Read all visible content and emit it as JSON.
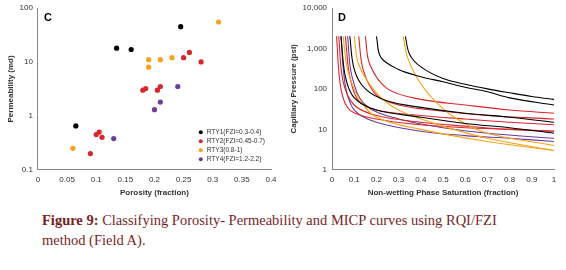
{
  "chart_data": [
    {
      "type": "scatter",
      "annotation": "C",
      "x_label": "Porosity (fraction)",
      "y_label": "Permeability (md)",
      "log": "y",
      "grid": false,
      "legend": "lower right",
      "marker": "circle",
      "xlim": [
        0,
        0.4
      ],
      "xticks": [
        0,
        0.05,
        0.1,
        0.15,
        0.2,
        0.25,
        0.3,
        0.35,
        0.4
      ],
      "ylim": [
        0.1,
        100
      ],
      "yticks": [
        0.1,
        1,
        10,
        100
      ],
      "series": [
        {
          "name": "RTY1(FZI=0.3-0.4)",
          "color": "#000000",
          "x": [
            0.065,
            0.135,
            0.16,
            0.245
          ],
          "values": [
            0.65,
            18,
            17,
            45
          ]
        },
        {
          "name": "RTY2(FZI=0.45-0.7)",
          "color": "#d9262b",
          "x": [
            0.09,
            0.1,
            0.105,
            0.11,
            0.18,
            0.185,
            0.205,
            0.21,
            0.25,
            0.26,
            0.28
          ],
          "values": [
            0.2,
            0.45,
            0.5,
            0.4,
            3,
            3.2,
            3,
            3.5,
            12,
            15,
            10
          ]
        },
        {
          "name": "RTY3(0.8-1)",
          "color": "#f5a31a",
          "x": [
            0.06,
            0.19,
            0.19,
            0.21,
            0.23,
            0.31
          ],
          "values": [
            0.25,
            11,
            8,
            11,
            12,
            55
          ]
        },
        {
          "name": "RTY4(FZI=1.2-2.2)",
          "color": "#6a3d9a",
          "x": [
            0.13,
            0.2,
            0.21,
            0.24
          ],
          "values": [
            0.38,
            1.3,
            1.8,
            3.5
          ]
        }
      ]
    },
    {
      "type": "line",
      "annotation": "D",
      "x_label": "Non-wetting Phase Saturation (fraction)",
      "y_label": "Capillary Pressure (psi)",
      "log": "y",
      "grid": false,
      "xlim": [
        0,
        1
      ],
      "xticks": [
        0,
        0.1,
        0.2,
        0.3,
        0.4,
        0.5,
        0.6,
        0.7,
        0.8,
        0.9,
        1
      ],
      "ylim": [
        1,
        10000
      ],
      "yticks": [
        1,
        10,
        100,
        {
          "value": 1000,
          "label": "1,000"
        },
        {
          "value": 10000,
          "label": "10,000"
        }
      ],
      "series": [
        {
          "color": "#000000",
          "x": [
            0.33,
            0.35,
            0.4,
            0.5,
            0.6,
            0.7,
            0.8,
            0.9,
            1
          ],
          "values": [
            2000,
            700,
            350,
            180,
            130,
            100,
            80,
            65,
            55
          ]
        },
        {
          "color": "#000000",
          "x": [
            0.2,
            0.22,
            0.3,
            0.4,
            0.5,
            0.6,
            0.7,
            0.8,
            1
          ],
          "values": [
            2000,
            600,
            300,
            200,
            150,
            110,
            85,
            60,
            40
          ]
        },
        {
          "color": "#000000",
          "x": [
            0.08,
            0.1,
            0.15,
            0.25,
            0.4,
            0.6,
            0.8,
            1
          ],
          "values": [
            2000,
            300,
            100,
            50,
            35,
            25,
            20,
            15
          ]
        },
        {
          "color": "#000000",
          "x": [
            0.04,
            0.06,
            0.1,
            0.2,
            0.4,
            0.6,
            0.8,
            1
          ],
          "values": [
            2000,
            200,
            60,
            30,
            20,
            14,
            11,
            8
          ]
        },
        {
          "color": "#f5a31a",
          "x": [
            0.32,
            0.34,
            0.38,
            0.45,
            0.55,
            0.7,
            1
          ],
          "values": [
            2000,
            600,
            200,
            60,
            20,
            8,
            4
          ]
        },
        {
          "color": "#f5a31a",
          "x": [
            0.1,
            0.12,
            0.2,
            0.3,
            0.5,
            0.7,
            1
          ],
          "values": [
            2000,
            400,
            80,
            30,
            12,
            6,
            3
          ]
        },
        {
          "color": "#f5a31a",
          "x": [
            0.05,
            0.07,
            0.12,
            0.2,
            0.4,
            0.7,
            1
          ],
          "values": [
            2000,
            300,
            60,
            20,
            10,
            5,
            3
          ]
        },
        {
          "color": "#d9262b",
          "x": [
            0.03,
            0.05,
            0.1,
            0.2,
            0.4,
            0.6,
            0.8,
            1
          ],
          "values": [
            2000,
            150,
            40,
            22,
            15,
            12,
            10,
            9
          ]
        },
        {
          "color": "#d9262b",
          "x": [
            0.06,
            0.08,
            0.12,
            0.2,
            0.4,
            0.6,
            0.8,
            1
          ],
          "values": [
            2000,
            200,
            50,
            30,
            22,
            18,
            15,
            13
          ]
        },
        {
          "color": "#d9262b",
          "x": [
            0.02,
            0.04,
            0.08,
            0.2,
            0.4,
            0.6,
            0.8,
            1
          ],
          "values": [
            2000,
            100,
            30,
            18,
            13,
            11,
            10,
            9
          ]
        },
        {
          "color": "#d9262b",
          "x": [
            0.12,
            0.14,
            0.2,
            0.3,
            0.5,
            0.7,
            1
          ],
          "values": [
            2000,
            300,
            70,
            40,
            28,
            22,
            18
          ]
        },
        {
          "color": "#d9262b",
          "x": [
            0.15,
            0.17,
            0.25,
            0.4,
            0.6,
            0.8,
            1
          ],
          "values": [
            2000,
            400,
            100,
            55,
            40,
            30,
            25
          ]
        },
        {
          "color": "#6a3d9a",
          "x": [
            0.04,
            0.06,
            0.1,
            0.2,
            0.4,
            0.6,
            0.8,
            1
          ],
          "values": [
            2000,
            120,
            30,
            15,
            9,
            7,
            6,
            5
          ]
        },
        {
          "color": "#6a3d9a",
          "x": [
            0.07,
            0.09,
            0.15,
            0.3,
            0.5,
            0.7,
            1
          ],
          "values": [
            2000,
            200,
            40,
            18,
            11,
            8,
            6
          ]
        }
      ]
    }
  ],
  "caption": {
    "label": "Figure 9:",
    "text": "Classifying Porosity- Permeability and MICP curves using RQI/FZI method (Field A)."
  }
}
